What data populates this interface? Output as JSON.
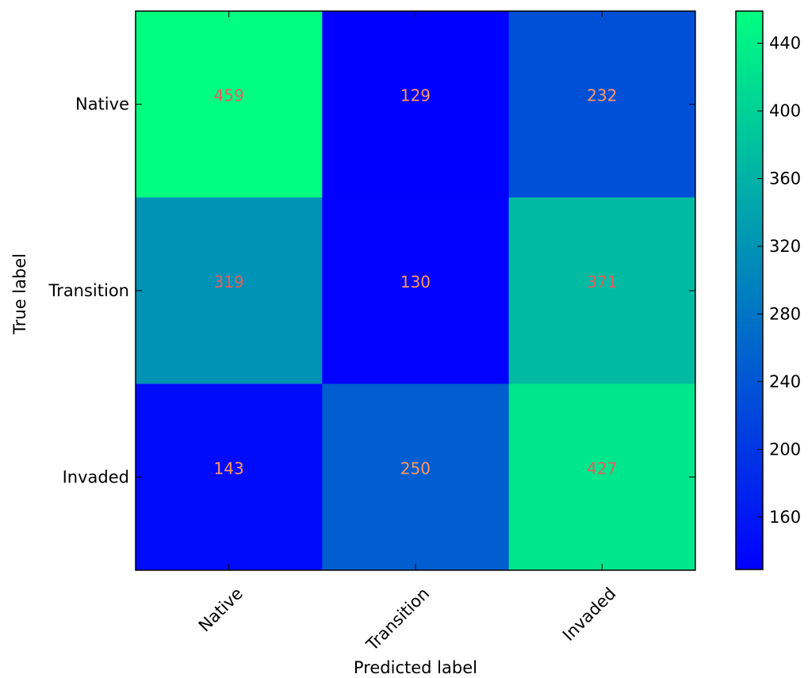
{
  "chart_data": {
    "type": "heatmap",
    "title": "",
    "xlabel": "Predicted label",
    "ylabel": "True label",
    "x_categories": [
      "Native",
      "Transition",
      "Invaded"
    ],
    "y_categories": [
      "Native",
      "Transition",
      "Invaded"
    ],
    "values": [
      [
        459,
        129,
        232
      ],
      [
        319,
        130,
        371
      ],
      [
        143,
        250,
        427
      ]
    ],
    "cell_labels": [
      [
        "459",
        "129",
        "232"
      ],
      [
        "319",
        "130",
        "371"
      ],
      [
        "143",
        "250",
        "427"
      ]
    ],
    "colormap": "winter",
    "colormap_colors": [
      "#0000ff",
      "#00ff80"
    ],
    "value_range": [
      129,
      459
    ],
    "colorbar": {
      "ticks": [
        160,
        200,
        240,
        280,
        320,
        360,
        400,
        440
      ],
      "tick_labels": [
        "160",
        "200",
        "240",
        "280",
        "320",
        "360",
        "400",
        "440"
      ]
    },
    "cell_text_colors": {
      "dark": "#e06060",
      "light": "#ff9966"
    },
    "grid": false,
    "legend": "none"
  }
}
